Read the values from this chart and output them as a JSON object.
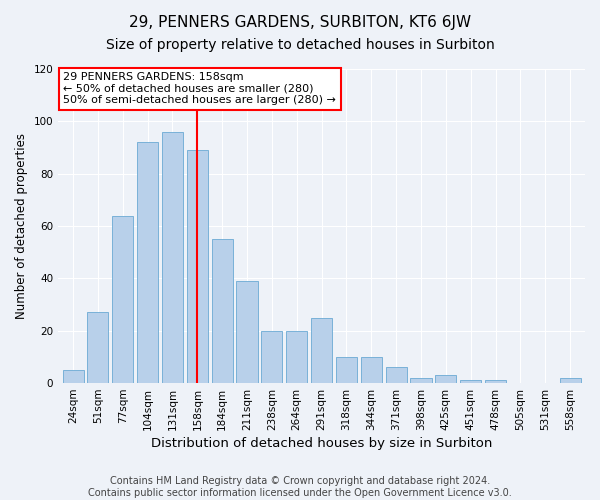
{
  "title": "29, PENNERS GARDENS, SURBITON, KT6 6JW",
  "subtitle": "Size of property relative to detached houses in Surbiton",
  "xlabel": "Distribution of detached houses by size in Surbiton",
  "ylabel": "Number of detached properties",
  "categories": [
    "24sqm",
    "51sqm",
    "77sqm",
    "104sqm",
    "131sqm",
    "158sqm",
    "184sqm",
    "211sqm",
    "238sqm",
    "264sqm",
    "291sqm",
    "318sqm",
    "344sqm",
    "371sqm",
    "398sqm",
    "425sqm",
    "451sqm",
    "478sqm",
    "505sqm",
    "531sqm",
    "558sqm"
  ],
  "values": [
    5,
    27,
    64,
    92,
    96,
    89,
    55,
    39,
    20,
    20,
    25,
    10,
    10,
    6,
    2,
    3,
    1,
    1,
    0,
    0,
    2
  ],
  "bar_color": "#b8d0ea",
  "bar_edgecolor": "#6aaad4",
  "vline_x_idx": 5,
  "vline_color": "red",
  "annotation_text": "29 PENNERS GARDENS: 158sqm\n← 50% of detached houses are smaller (280)\n50% of semi-detached houses are larger (280) →",
  "annotation_box_color": "white",
  "annotation_box_edgecolor": "red",
  "ylim": [
    0,
    120
  ],
  "yticks": [
    0,
    20,
    40,
    60,
    80,
    100,
    120
  ],
  "footer_line1": "Contains HM Land Registry data © Crown copyright and database right 2024.",
  "footer_line2": "Contains public sector information licensed under the Open Government Licence v3.0.",
  "background_color": "#eef2f8",
  "title_fontsize": 11,
  "subtitle_fontsize": 10,
  "xlabel_fontsize": 9.5,
  "ylabel_fontsize": 8.5,
  "tick_fontsize": 7.5,
  "footer_fontsize": 7,
  "annotation_fontsize": 8
}
